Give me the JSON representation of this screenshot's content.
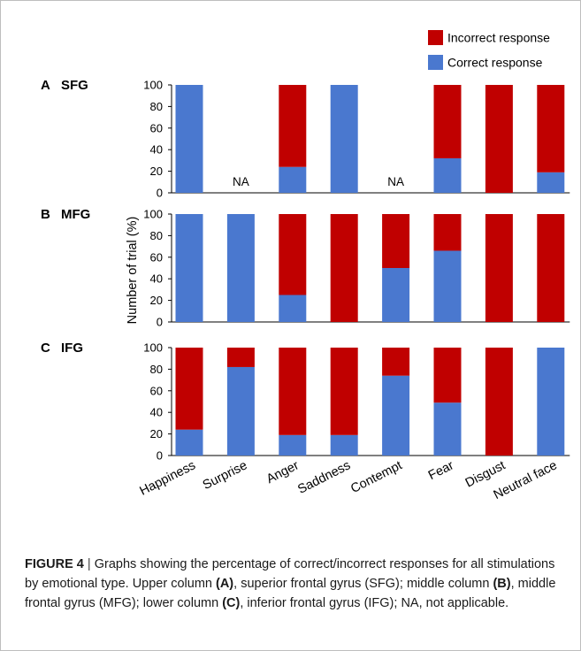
{
  "chart_data": {
    "type": "bar",
    "stacked": true,
    "categories": [
      "Happiness",
      "Surprise",
      "Anger",
      "Saddness",
      "Contempt",
      "Fear",
      "Disgust",
      "Neutral face"
    ],
    "ylabel": "Number of trial (%)",
    "ylim": [
      0,
      100
    ],
    "yticks": [
      0,
      20,
      40,
      60,
      80,
      100
    ],
    "legend": {
      "placement": "top-right",
      "entries": [
        {
          "name": "Incorrect response",
          "color": "#c00000"
        },
        {
          "name": "Correct response",
          "color": "#4a78cf"
        }
      ]
    },
    "na_label": "NA",
    "panels": [
      {
        "letter": "A",
        "name": "SFG",
        "correct": [
          100,
          null,
          24,
          100,
          null,
          32,
          0,
          19
        ],
        "incorrect": [
          0,
          null,
          76,
          0,
          null,
          68,
          100,
          81
        ]
      },
      {
        "letter": "B",
        "name": "MFG",
        "correct": [
          100,
          100,
          25,
          0,
          50,
          66,
          0,
          0
        ],
        "incorrect": [
          0,
          0,
          75,
          100,
          50,
          34,
          100,
          100
        ]
      },
      {
        "letter": "C",
        "name": "IFG",
        "correct": [
          24,
          82,
          19,
          19,
          74,
          49,
          0,
          100
        ],
        "incorrect": [
          76,
          18,
          81,
          81,
          26,
          51,
          100,
          0
        ]
      }
    ]
  },
  "colors": {
    "incorrect": "#c00000",
    "correct": "#4a78cf",
    "axis": "#000000"
  },
  "caption": {
    "label": "FIGURE 4",
    "separator": "|",
    "t1": " Graphs showing the percentage of correct/incorrect responses for all stimulations by emotional type. Upper column ",
    "b1": "(A)",
    "t2": ", superior frontal gyrus (SFG); middle column ",
    "b2": "(B)",
    "t3": ", middle frontal gyrus (MFG); lower column ",
    "b3": "(C)",
    "t4": ", inferior frontal gyrus (IFG); NA, not applicable."
  }
}
